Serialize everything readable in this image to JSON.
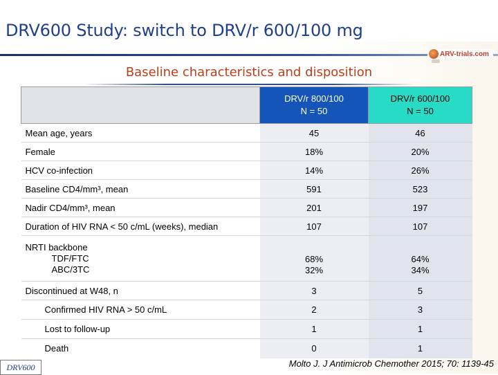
{
  "header": {
    "title": "DRV600 Study: switch to DRV/r 600/100 mg",
    "logo_text": "ARV-trials.com"
  },
  "subtitle": "Baseline characteristics and disposition",
  "table": {
    "columns": [
      {
        "line1": "DRV/r 800/100",
        "line2": "N = 50"
      },
      {
        "line1": "DRV/r 600/100",
        "line2": "N = 50"
      }
    ],
    "rows": [
      {
        "label": "Mean age, years",
        "a": "45",
        "b": "46"
      },
      {
        "label": "Female",
        "a": "18%",
        "b": "20%"
      },
      {
        "label": "HCV co-infection",
        "a": "14%",
        "b": "26%"
      },
      {
        "label": "Baseline CD4/mm³, mean",
        "a": "591",
        "b": "523"
      },
      {
        "label": "Nadir CD4/mm³, mean",
        "a": "201",
        "b": "197"
      },
      {
        "label": "Duration of HIV RNA < 50 c/mL (weeks), median",
        "a": "107",
        "b": "107"
      }
    ],
    "nrti": {
      "label": "NRTI backbone",
      "sub": [
        {
          "label": "TDF/FTC",
          "a": "68%",
          "b": "64%"
        },
        {
          "label": "ABC/3TC",
          "a": "32%",
          "b": "34%"
        }
      ]
    },
    "disposition": [
      {
        "label": "Discontinued at W48, n",
        "a": "3",
        "b": "5",
        "indent": false
      },
      {
        "label": "Confirmed HIV RNA > 50 c/mL",
        "a": "2",
        "b": "3",
        "indent": true
      },
      {
        "label": "Lost to follow-up",
        "a": "1",
        "b": "1",
        "indent": true
      },
      {
        "label": "Death",
        "a": "0",
        "b": "1",
        "indent": true
      }
    ]
  },
  "footer": {
    "badge": "DRV600",
    "citation": "Molto J. J Antimicrob Chemother 2015; 70: 1139-45"
  }
}
